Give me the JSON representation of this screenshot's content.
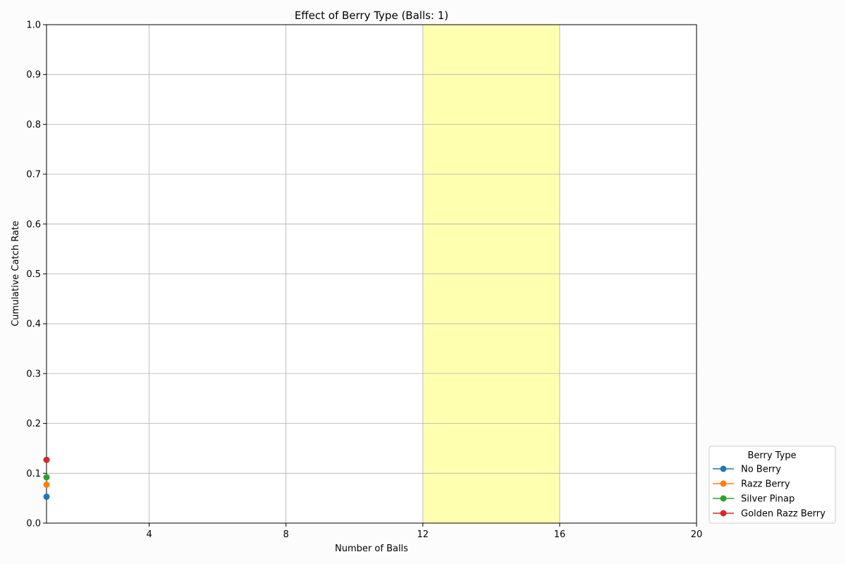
{
  "chart_data": {
    "type": "line",
    "title": "Effect of Berry Type (Balls: 1)",
    "xlabel": "Number of Balls",
    "ylabel": "Cumulative Catch Rate",
    "xlim": [
      1,
      20
    ],
    "ylim": [
      0,
      1.0
    ],
    "xticks": [
      4,
      8,
      12,
      16,
      20
    ],
    "yticks": [
      0.0,
      0.1,
      0.2,
      0.3,
      0.4,
      0.5,
      0.6,
      0.7,
      0.8,
      0.9,
      1.0
    ],
    "ytick_labels": [
      "0.0",
      "0.1",
      "0.2",
      "0.3",
      "0.4",
      "0.5",
      "0.6",
      "0.7",
      "0.8",
      "0.9",
      "1.0"
    ],
    "grid": true,
    "highlight_band": {
      "x_start": 12,
      "x_end": 16,
      "color": "#ffffb0"
    },
    "legend": {
      "title": "Berry Type",
      "placement": "lower-right-outside"
    },
    "series": [
      {
        "name": "No Berry",
        "color": "#1f77b4",
        "x": [
          1
        ],
        "y": [
          0.053
        ]
      },
      {
        "name": "Razz Berry",
        "color": "#ff7f0e",
        "x": [
          1
        ],
        "y": [
          0.077
        ]
      },
      {
        "name": "Silver Pinap",
        "color": "#2ca02c",
        "x": [
          1
        ],
        "y": [
          0.092
        ]
      },
      {
        "name": "Golden Razz Berry",
        "color": "#d62728",
        "x": [
          1
        ],
        "y": [
          0.127
        ]
      }
    ]
  }
}
